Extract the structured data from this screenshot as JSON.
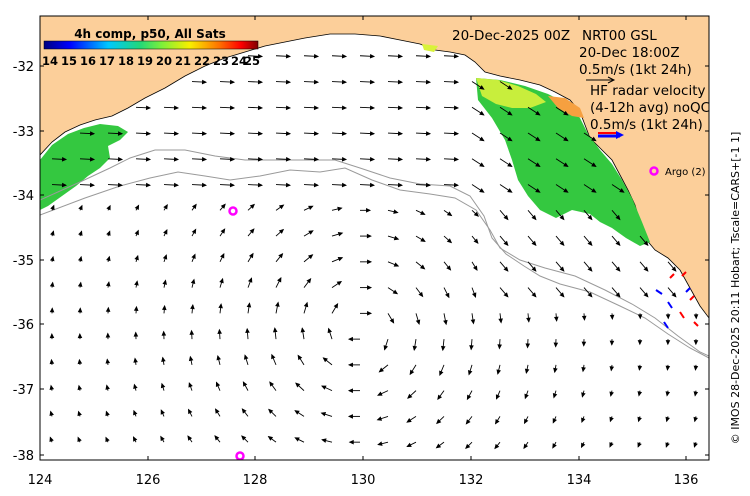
{
  "map": {
    "title_date": "20-Dec-2025 00Z",
    "legend": {
      "title": "4h comp, p50, All Sats",
      "values": [
        "14",
        "15",
        "16",
        "17",
        "18",
        "19",
        "20",
        "21",
        "22",
        "23",
        "24",
        "25"
      ]
    },
    "info": {
      "line1": "NRT00 GSL",
      "line2": "20-Dec 18:00Z",
      "line3": "0.5m/s (1kt 24h)",
      "hf1": "HF radar velocity",
      "hf2": "(4-12h avg) noQC",
      "hf3": "0.5m/s (1kt 24h)"
    },
    "argo_label": "Argo (2)",
    "credit": "© IMOS 28-Dec-2025 20:11 Hobart; Tscale=CARS+[-1 1]",
    "x_ticks": [
      "124",
      "126",
      "128",
      "130",
      "132",
      "134",
      "136"
    ],
    "y_ticks": [
      "-32",
      "-33",
      "-34",
      "-35",
      "-36",
      "-37",
      "-38"
    ],
    "colors": {
      "land": "#fccf9a",
      "ocean": "#ffffff",
      "sst_green": "#34c840",
      "sst_yellow": "#d9f23a",
      "argo": "#ff00ff",
      "hf_arrow_red": "#ff0000",
      "hf_arrow_blue": "#0000ff"
    }
  }
}
